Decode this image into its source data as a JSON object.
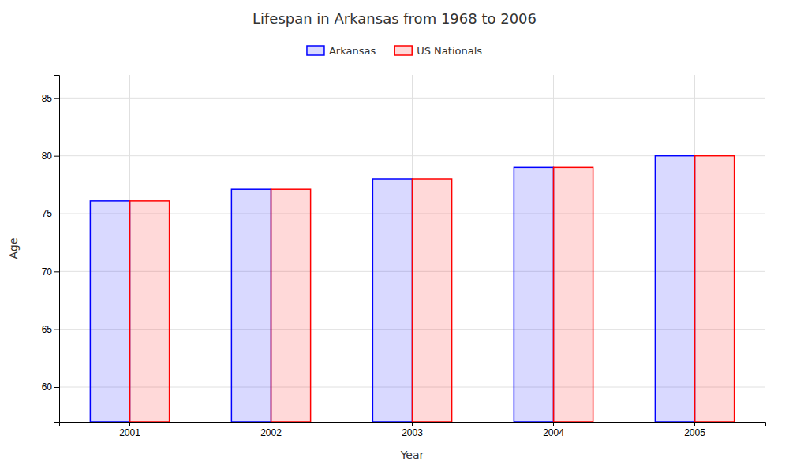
{
  "chart_data": {
    "type": "bar",
    "title": "Lifespan in Arkansas from 1968 to 2006",
    "categories": [
      "2001",
      "2002",
      "2003",
      "2004",
      "2005"
    ],
    "series": [
      {
        "name": "Arkansas",
        "color": "#0000ff",
        "values": [
          76.1,
          77.1,
          78.0,
          79.0,
          80.0
        ]
      },
      {
        "name": "US Nationals",
        "color": "#ff0000",
        "values": [
          76.1,
          77.1,
          78.0,
          79.0,
          80.0
        ]
      }
    ],
    "x_label": "Year",
    "y_label": "Age",
    "ylim": [
      57,
      87
    ],
    "yticks": [
      60,
      65,
      70,
      75,
      80,
      85
    ],
    "grid": true,
    "legend": "top"
  }
}
